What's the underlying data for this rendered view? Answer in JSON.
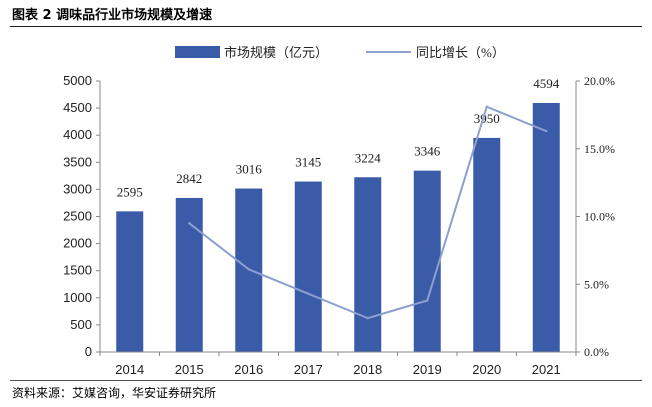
{
  "figure_title": "图表 2 调味品行业市场规模及增速",
  "source": "资料来源：艾媒咨询，华安证券研究所",
  "colors": {
    "bar": "#3a5ba8",
    "line": "#8c9fd0",
    "axis": "#888888"
  },
  "chart_data": {
    "type": "bar+line",
    "categories": [
      "2014",
      "2015",
      "2016",
      "2017",
      "2018",
      "2019",
      "2020",
      "2021"
    ],
    "series": [
      {
        "name": "市场规模（亿元）",
        "type": "bar",
        "axis": "left",
        "values": [
          2595,
          2842,
          3016,
          3145,
          3224,
          3346,
          3950,
          4594
        ],
        "labels": [
          "2595",
          "2842",
          "3016",
          "3145",
          "3224",
          "3346",
          "3950",
          "4594"
        ]
      },
      {
        "name": "同比增长（%）",
        "type": "line",
        "axis": "right",
        "values": [
          null,
          9.5,
          6.1,
          4.3,
          2.5,
          3.8,
          18.1,
          16.3
        ]
      }
    ],
    "y_left": {
      "min": 0,
      "max": 5000,
      "step": 500,
      "ticks": [
        "0",
        "500",
        "1000",
        "1500",
        "2000",
        "2500",
        "3000",
        "3500",
        "4000",
        "4500",
        "5000"
      ]
    },
    "y_right": {
      "min": 0,
      "max": 20,
      "step": 5,
      "ticks": [
        "0.0%",
        "5.0%",
        "10.0%",
        "15.0%",
        "20.0%"
      ]
    },
    "legend": {
      "position": "top-center",
      "items": [
        "市场规模（亿元）",
        "同比增长（%）"
      ]
    }
  }
}
